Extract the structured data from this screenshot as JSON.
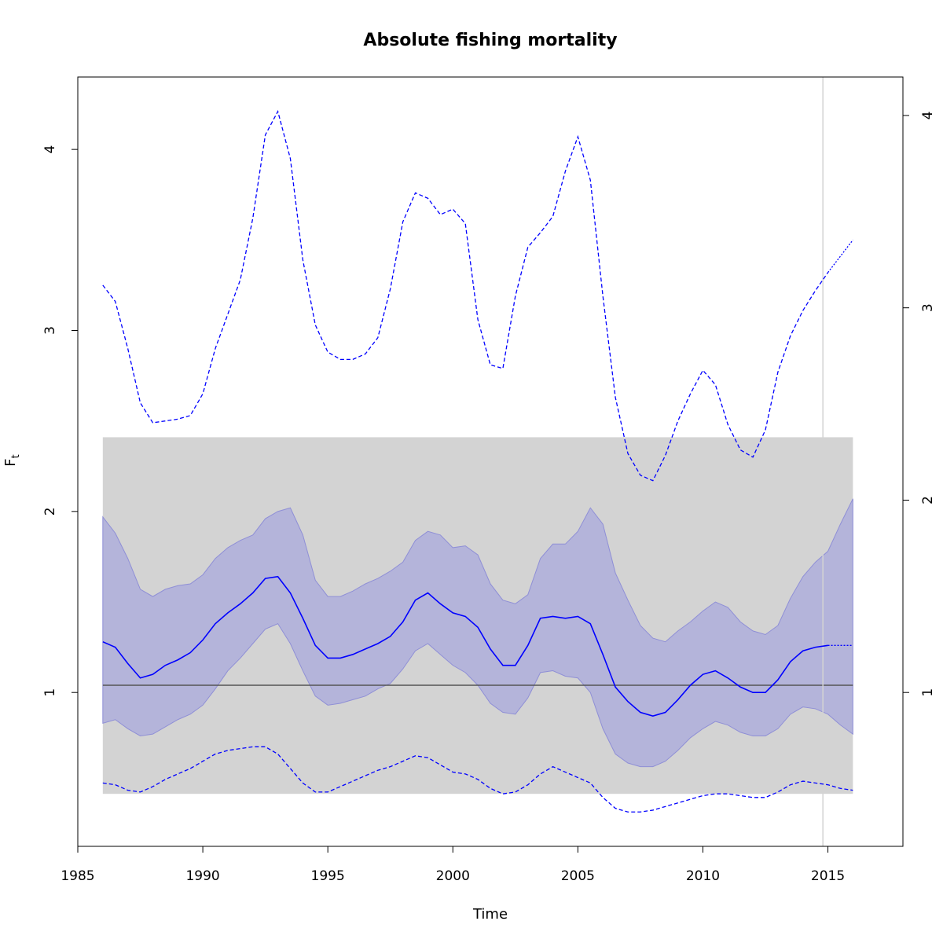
{
  "chart_data": {
    "type": "line",
    "title": "Absolute fishing mortality",
    "xlabel": "Time",
    "ylabel": "F",
    "ylabel_subscript": "t",
    "xlim": [
      1985,
      2018
    ],
    "ylim_left": [
      0.15,
      4.4
    ],
    "ylim_right": [
      0.2,
      4.2
    ],
    "x_ticks": [
      1985,
      1990,
      1995,
      2000,
      2005,
      2010,
      2015
    ],
    "y_ticks_left": [
      1,
      2,
      3,
      4
    ],
    "y_ticks_right": [
      1,
      2,
      3,
      4
    ],
    "grid": false,
    "legend": "none",
    "vertical_line_x": 2014.8,
    "reference_band": {
      "x": [
        1986,
        2016
      ],
      "ymin": 0.44,
      "ymax": 2.41,
      "color": "#d3d3d3"
    },
    "reference_line": {
      "y": 1.04,
      "x": [
        1986,
        2016
      ],
      "color": "#555555"
    },
    "colors": {
      "estimate": "#0000ff",
      "ci_fill": "#a3a3dd",
      "ci_edge": "#8f8fd6",
      "vline": "#d3d3d3"
    },
    "series": [
      {
        "role": "estimate",
        "style": "solid",
        "x": [
          1986,
          1986.5,
          1987,
          1987.5,
          1988,
          1988.5,
          1989,
          1989.5,
          1990,
          1990.5,
          1991,
          1991.5,
          1992,
          1992.5,
          1993,
          1993.5,
          1994,
          1994.5,
          1995,
          1995.5,
          1996,
          1996.5,
          1997,
          1997.5,
          1998,
          1998.5,
          1999,
          1999.5,
          2000,
          2000.5,
          2001,
          2001.5,
          2002,
          2002.5,
          2003,
          2003.5,
          2004,
          2004.5,
          2005,
          2005.5,
          2006,
          2006.5,
          2007,
          2007.5,
          2008,
          2008.5,
          2009,
          2009.5,
          2010,
          2010.5,
          2011,
          2011.5,
          2012,
          2012.5,
          2013,
          2013.5,
          2014,
          2014.5,
          2015
        ],
        "y": [
          1.28,
          1.25,
          1.16,
          1.08,
          1.1,
          1.15,
          1.18,
          1.22,
          1.29,
          1.38,
          1.44,
          1.49,
          1.55,
          1.63,
          1.64,
          1.55,
          1.41,
          1.26,
          1.19,
          1.19,
          1.21,
          1.24,
          1.27,
          1.31,
          1.39,
          1.51,
          1.55,
          1.49,
          1.44,
          1.42,
          1.36,
          1.24,
          1.15,
          1.15,
          1.26,
          1.41,
          1.42,
          1.41,
          1.42,
          1.38,
          1.21,
          1.03,
          0.95,
          0.89,
          0.87,
          0.89,
          0.96,
          1.04,
          1.1,
          1.12,
          1.08,
          1.03,
          1.0,
          1.0,
          1.07,
          1.17,
          1.23,
          1.25,
          1.26
        ]
      },
      {
        "role": "estimate-projection",
        "style": "dotted",
        "x": [
          2015,
          2016
        ],
        "y": [
          1.26,
          1.26
        ]
      },
      {
        "role": "ci-upper",
        "x": [
          1986,
          1986.5,
          1987,
          1987.5,
          1988,
          1988.5,
          1989,
          1989.5,
          1990,
          1990.5,
          1991,
          1991.5,
          1992,
          1992.5,
          1993,
          1993.5,
          1994,
          1994.5,
          1995,
          1995.5,
          1996,
          1996.5,
          1997,
          1997.5,
          1998,
          1998.5,
          1999,
          1999.5,
          2000,
          2000.5,
          2001,
          2001.5,
          2002,
          2002.5,
          2003,
          2003.5,
          2004,
          2004.5,
          2005,
          2005.5,
          2006,
          2006.5,
          2007,
          2007.5,
          2008,
          2008.5,
          2009,
          2009.5,
          2010,
          2010.5,
          2011,
          2011.5,
          2012,
          2012.5,
          2013,
          2013.5,
          2014,
          2014.5,
          2015,
          2015.5,
          2016
        ],
        "y": [
          1.97,
          1.88,
          1.74,
          1.57,
          1.53,
          1.57,
          1.59,
          1.6,
          1.65,
          1.74,
          1.8,
          1.84,
          1.87,
          1.96,
          2.0,
          2.02,
          1.87,
          1.62,
          1.53,
          1.53,
          1.56,
          1.6,
          1.63,
          1.67,
          1.72,
          1.84,
          1.89,
          1.87,
          1.8,
          1.81,
          1.76,
          1.6,
          1.51,
          1.49,
          1.54,
          1.74,
          1.82,
          1.82,
          1.89,
          2.02,
          1.93,
          1.66,
          1.51,
          1.37,
          1.3,
          1.28,
          1.34,
          1.39,
          1.45,
          1.5,
          1.47,
          1.39,
          1.34,
          1.32,
          1.37,
          1.52,
          1.64,
          1.72,
          1.78,
          1.93,
          2.07
        ]
      },
      {
        "role": "ci-lower",
        "x": [
          1986,
          1986.5,
          1987,
          1987.5,
          1988,
          1988.5,
          1989,
          1989.5,
          1990,
          1990.5,
          1991,
          1991.5,
          1992,
          1992.5,
          1993,
          1993.5,
          1994,
          1994.5,
          1995,
          1995.5,
          1996,
          1996.5,
          1997,
          1997.5,
          1998,
          1998.5,
          1999,
          1999.5,
          2000,
          2000.5,
          2001,
          2001.5,
          2002,
          2002.5,
          2003,
          2003.5,
          2004,
          2004.5,
          2005,
          2005.5,
          2006,
          2006.5,
          2007,
          2007.5,
          2008,
          2008.5,
          2009,
          2009.5,
          2010,
          2010.5,
          2011,
          2011.5,
          2012,
          2012.5,
          2013,
          2013.5,
          2014,
          2014.5,
          2015,
          2015.5,
          2016
        ],
        "y": [
          0.83,
          0.85,
          0.8,
          0.76,
          0.77,
          0.81,
          0.85,
          0.88,
          0.93,
          1.02,
          1.12,
          1.19,
          1.27,
          1.35,
          1.38,
          1.27,
          1.12,
          0.98,
          0.93,
          0.94,
          0.96,
          0.98,
          1.02,
          1.05,
          1.13,
          1.23,
          1.27,
          1.21,
          1.15,
          1.11,
          1.04,
          0.94,
          0.89,
          0.88,
          0.97,
          1.11,
          1.12,
          1.09,
          1.08,
          1.0,
          0.8,
          0.66,
          0.61,
          0.59,
          0.59,
          0.62,
          0.68,
          0.75,
          0.8,
          0.84,
          0.82,
          0.78,
          0.76,
          0.76,
          0.8,
          0.88,
          0.92,
          0.91,
          0.88,
          0.82,
          0.77
        ]
      },
      {
        "role": "outer-upper",
        "style": "dashed",
        "x": [
          1986,
          1986.5,
          1987,
          1987.5,
          1988,
          1988.5,
          1989,
          1989.5,
          1990,
          1990.5,
          1991,
          1991.5,
          1992,
          1992.5,
          1993,
          1993.5,
          1994,
          1994.5,
          1995,
          1995.5,
          1996,
          1996.5,
          1997,
          1997.5,
          1998,
          1998.5,
          1999,
          1999.5,
          2000,
          2000.5,
          2001,
          2001.5,
          2002,
          2002.5,
          2003,
          2003.5,
          2004,
          2004.5,
          2005,
          2005.5,
          2006,
          2006.5,
          2007,
          2007.5,
          2008,
          2008.5,
          2009,
          2009.5,
          2010,
          2010.5,
          2011,
          2011.5,
          2012,
          2012.5,
          2013,
          2013.5,
          2014,
          2014.5,
          2015
        ],
        "y": [
          3.25,
          3.16,
          2.9,
          2.6,
          2.49,
          2.5,
          2.51,
          2.53,
          2.65,
          2.9,
          3.09,
          3.28,
          3.62,
          4.08,
          4.21,
          3.95,
          3.39,
          3.03,
          2.88,
          2.84,
          2.84,
          2.87,
          2.96,
          3.23,
          3.6,
          3.76,
          3.73,
          3.64,
          3.67,
          3.59,
          3.06,
          2.81,
          2.79,
          3.19,
          3.46,
          3.54,
          3.63,
          3.88,
          4.07,
          3.83,
          3.19,
          2.63,
          2.32,
          2.2,
          2.17,
          2.31,
          2.5,
          2.65,
          2.78,
          2.7,
          2.48,
          2.34,
          2.3,
          2.45,
          2.77,
          2.97,
          3.11,
          3.22,
          3.32
        ]
      },
      {
        "role": "outer-upper-projection",
        "style": "dotted",
        "x": [
          2015,
          2015.5,
          2016
        ],
        "y": [
          3.32,
          3.41,
          3.5
        ]
      },
      {
        "role": "outer-lower",
        "style": "dashed",
        "x": [
          1986,
          1986.5,
          1987,
          1987.5,
          1988,
          1988.5,
          1989,
          1989.5,
          1990,
          1990.5,
          1991,
          1991.5,
          1992,
          1992.5,
          1993,
          1993.5,
          1994,
          1994.5,
          1995,
          1995.5,
          1996,
          1996.5,
          1997,
          1997.5,
          1998,
          1998.5,
          1999,
          1999.5,
          2000,
          2000.5,
          2001,
          2001.5,
          2002,
          2002.5,
          2003,
          2003.5,
          2004,
          2004.5,
          2005,
          2005.5,
          2006,
          2006.5,
          2007,
          2007.5,
          2008,
          2008.5,
          2009,
          2009.5,
          2010,
          2010.5,
          2011,
          2011.5,
          2012,
          2012.5,
          2013,
          2013.5,
          2014,
          2014.5,
          2015,
          2015.5,
          2016
        ],
        "y": [
          0.5,
          0.49,
          0.46,
          0.45,
          0.48,
          0.52,
          0.55,
          0.58,
          0.62,
          0.66,
          0.68,
          0.69,
          0.7,
          0.7,
          0.66,
          0.58,
          0.5,
          0.45,
          0.45,
          0.48,
          0.51,
          0.54,
          0.57,
          0.59,
          0.62,
          0.65,
          0.64,
          0.6,
          0.56,
          0.55,
          0.52,
          0.47,
          0.44,
          0.45,
          0.49,
          0.55,
          0.59,
          0.56,
          0.53,
          0.5,
          0.42,
          0.36,
          0.34,
          0.34,
          0.35,
          0.37,
          0.39,
          0.41,
          0.43,
          0.44,
          0.44,
          0.43,
          0.42,
          0.42,
          0.45,
          0.49,
          0.51,
          0.5,
          0.49,
          0.47,
          0.46
        ]
      }
    ]
  }
}
